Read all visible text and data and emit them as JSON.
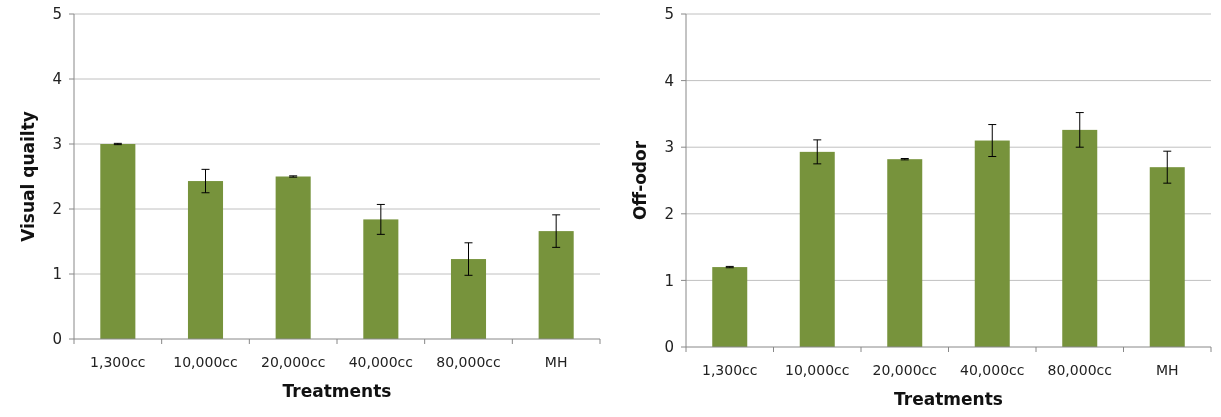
{
  "chart_data": [
    {
      "type": "bar",
      "xlabel": "Treatments",
      "ylabel": "Visual quailty",
      "categories": [
        "1,300cc",
        "10,000cc",
        "20,000cc",
        "40,000cc",
        "80,000cc",
        "MH"
      ],
      "series": [
        {
          "color": "#77933c",
          "values": [
            3.0,
            2.43,
            2.5,
            1.84,
            1.23,
            1.66
          ],
          "errors": [
            0.01,
            0.18,
            0.01,
            0.23,
            0.25,
            0.25
          ]
        }
      ],
      "ylim": [
        0,
        5
      ],
      "yticks": [
        0,
        1,
        2,
        3,
        4,
        5
      ],
      "grid": "y"
    },
    {
      "type": "bar",
      "xlabel": "Treatments",
      "ylabel": "Off-odor",
      "categories": [
        "1,300cc",
        "10,000cc",
        "20,000cc",
        "40,000cc",
        "80,000cc",
        "MH"
      ],
      "series": [
        {
          "color": "#77933c",
          "values": [
            1.2,
            2.93,
            2.82,
            3.1,
            3.26,
            2.7
          ],
          "errors": [
            0.01,
            0.18,
            0.01,
            0.24,
            0.26,
            0.24
          ]
        }
      ],
      "ylim": [
        0,
        5
      ],
      "yticks": [
        0,
        1,
        2,
        3,
        4,
        5
      ],
      "grid": "y"
    }
  ]
}
